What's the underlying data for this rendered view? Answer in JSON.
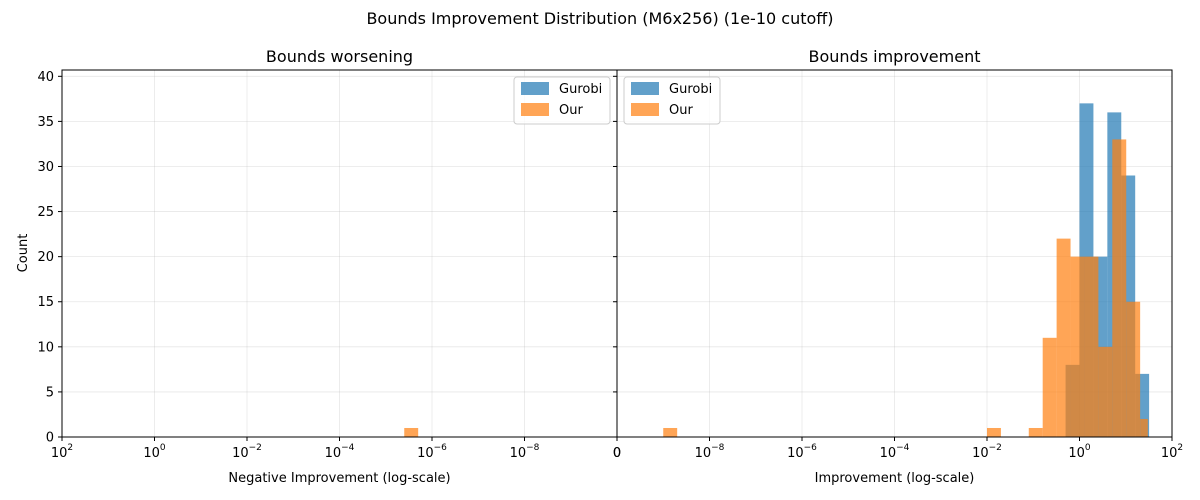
{
  "figure": {
    "title": "Bounds Improvement Distribution (M6x256) (1e-10 cutoff)",
    "ylabel": "Count"
  },
  "colors": {
    "gurobi": "#1f77b4",
    "our": "#ff7f0e",
    "grid": "#b0b0b0"
  },
  "chart_data": [
    {
      "type": "bar",
      "panel": "left",
      "title": "Bounds worsening",
      "xlabel": "Negative Improvement (log-scale)",
      "ylabel": "Count",
      "xscale": "log",
      "x_inverted": true,
      "xlim": [
        100,
        1e-10
      ],
      "ylim": [
        0,
        40.7
      ],
      "x_ticks": [
        {
          "value": 100,
          "base": "10",
          "exp": "2"
        },
        {
          "value": 1,
          "base": "10",
          "exp": "0"
        },
        {
          "value": 0.01,
          "base": "10",
          "exp": "−2"
        },
        {
          "value": 0.0001,
          "base": "10",
          "exp": "−4"
        },
        {
          "value": 1e-06,
          "base": "10",
          "exp": "−6"
        },
        {
          "value": 1e-08,
          "base": "10",
          "exp": "−8"
        },
        {
          "value": 1e-10,
          "base": "0",
          "exp": ""
        }
      ],
      "y_ticks": [
        0,
        5,
        10,
        15,
        20,
        25,
        30,
        35,
        40
      ],
      "y_tick_labels": [
        "0",
        "5",
        "10",
        "15",
        "20",
        "25",
        "30",
        "35",
        "40"
      ],
      "legend": {
        "placement": "top-right",
        "entries": [
          "Gurobi",
          "Our"
        ]
      },
      "grid": true,
      "series": [
        {
          "name": "Gurobi",
          "bins": []
        },
        {
          "name": "Our",
          "bins": [
            {
              "x0": 3.98e-06,
              "x1": 1.99e-06,
              "count": 1
            }
          ]
        }
      ]
    },
    {
      "type": "bar",
      "panel": "right",
      "title": "Bounds improvement",
      "xlabel": "Improvement (log-scale)",
      "xscale": "log",
      "xlim": [
        1e-10,
        100
      ],
      "ylim": [
        0,
        40.7
      ],
      "x_ticks": [
        {
          "value": 1e-10,
          "base": "0",
          "exp": ""
        },
        {
          "value": 1e-08,
          "base": "10",
          "exp": "−8"
        },
        {
          "value": 1e-06,
          "base": "10",
          "exp": "−6"
        },
        {
          "value": 0.0001,
          "base": "10",
          "exp": "−4"
        },
        {
          "value": 0.01,
          "base": "10",
          "exp": "−2"
        },
        {
          "value": 1,
          "base": "10",
          "exp": "0"
        },
        {
          "value": 100,
          "base": "10",
          "exp": "2"
        }
      ],
      "legend": {
        "placement": "top-left",
        "entries": [
          "Gurobi",
          "Our"
        ]
      },
      "grid": true,
      "series": [
        {
          "name": "Gurobi",
          "bins": [
            {
              "x0": 0.5,
              "x1": 1.0,
              "count": 8
            },
            {
              "x0": 1.0,
              "x1": 2.0,
              "count": 37
            },
            {
              "x0": 2.0,
              "x1": 4.0,
              "count": 20
            },
            {
              "x0": 4.0,
              "x1": 8.0,
              "count": 36
            },
            {
              "x0": 8.0,
              "x1": 16.0,
              "count": 29
            },
            {
              "x0": 16.0,
              "x1": 32.0,
              "count": 7
            }
          ]
        },
        {
          "name": "Our",
          "bins": [
            {
              "x0": 1e-09,
              "x1": 2e-09,
              "count": 1
            },
            {
              "x0": 0.01,
              "x1": 0.02,
              "count": 1
            },
            {
              "x0": 0.08,
              "x1": 0.16,
              "count": 1
            },
            {
              "x0": 0.16,
              "x1": 0.32,
              "count": 11
            },
            {
              "x0": 0.32,
              "x1": 0.64,
              "count": 22
            },
            {
              "x0": 0.64,
              "x1": 1.28,
              "count": 20
            },
            {
              "x0": 1.28,
              "x1": 2.56,
              "count": 20
            },
            {
              "x0": 2.56,
              "x1": 5.12,
              "count": 10
            },
            {
              "x0": 5.12,
              "x1": 10.24,
              "count": 33
            },
            {
              "x0": 10.24,
              "x1": 20.48,
              "count": 15
            },
            {
              "x0": 20.48,
              "x1": 30.0,
              "count": 2
            }
          ]
        }
      ]
    }
  ]
}
